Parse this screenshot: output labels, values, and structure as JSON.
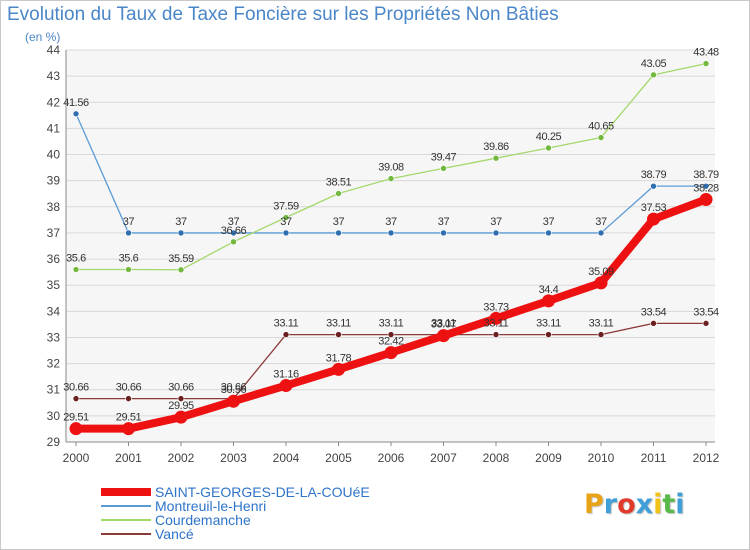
{
  "title": "Evolution du Taux de Taxe Foncière sur les Propriétés Non Bâties",
  "unit_label": "(en %)",
  "brand": {
    "letters": [
      "P",
      "r",
      "o",
      "x",
      "i",
      "t",
      "i"
    ],
    "colors": [
      "#e8a316",
      "#3f9fd8",
      "#e03a2b",
      "#3f9fd8",
      "#f2c21b",
      "#59b84a",
      "#3f9fd8"
    ]
  },
  "chart_data": {
    "type": "line",
    "categories": [
      "2000",
      "2001",
      "2002",
      "2003",
      "2004",
      "2005",
      "2006",
      "2007",
      "2008",
      "2009",
      "2010",
      "2011",
      "2012"
    ],
    "ylim": [
      29,
      44
    ],
    "yticks": [
      "29",
      "30",
      "31",
      "32",
      "33",
      "34",
      "35",
      "36",
      "37",
      "38",
      "39",
      "40",
      "41",
      "42",
      "43",
      "44"
    ],
    "grid": "horizontal",
    "legend_position": "bottom-left",
    "series": [
      {
        "name": "Montreuil-le-Henri",
        "color": "#5b9bd5",
        "marker_color": "#2f6fb0",
        "values": [
          41.56,
          37,
          37,
          37,
          37,
          37,
          37,
          37,
          37,
          37,
          37,
          38.79,
          38.79
        ],
        "labels": [
          "41.56",
          "37",
          "37",
          "37",
          "37",
          "37",
          "37",
          "37",
          "37",
          "37",
          "37",
          "38.79",
          "38.79"
        ]
      },
      {
        "name": "Courdemanche",
        "color": "#a3d86b",
        "marker_color": "#72b83f",
        "values": [
          35.6,
          35.6,
          35.59,
          36.66,
          37.59,
          38.51,
          39.08,
          39.47,
          39.86,
          40.25,
          40.65,
          43.05,
          43.48
        ],
        "labels": [
          "35.6",
          "35.6",
          "35.59",
          "36.66",
          "37.59",
          "38.51",
          "39.08",
          "39.47",
          "39.86",
          "40.25",
          "40.65",
          "43.05",
          "43.48"
        ]
      },
      {
        "name": "Vancé",
        "color": "#8b3a3a",
        "marker_color": "#6b2020",
        "values": [
          30.66,
          30.66,
          30.66,
          30.66,
          33.11,
          33.11,
          33.11,
          33.11,
          33.11,
          33.11,
          33.11,
          33.54,
          33.54
        ],
        "labels": [
          "30.66",
          "30.66",
          "30.66",
          "30.66",
          "33.11",
          "33.11",
          "33.11",
          "33.11",
          "33.11",
          "33.11",
          "33.11",
          "33.54",
          "33.54"
        ]
      },
      {
        "name": "SAINT-GEORGES-DE-LA-COUéE",
        "color": "#ee1111",
        "marker_color": "#ee1111",
        "values": [
          29.51,
          29.51,
          29.95,
          30.56,
          31.16,
          31.78,
          32.42,
          33.07,
          33.73,
          34.4,
          35.09,
          37.53,
          38.28
        ],
        "labels": [
          "29.51",
          "29.51",
          "29.95",
          "30.56",
          "31.16",
          "31.78",
          "32.42",
          "33.07",
          "33.73",
          "34.4",
          "35.09",
          "37.53",
          "38.28"
        ]
      }
    ],
    "legend_order": [
      3,
      0,
      1,
      2
    ]
  }
}
